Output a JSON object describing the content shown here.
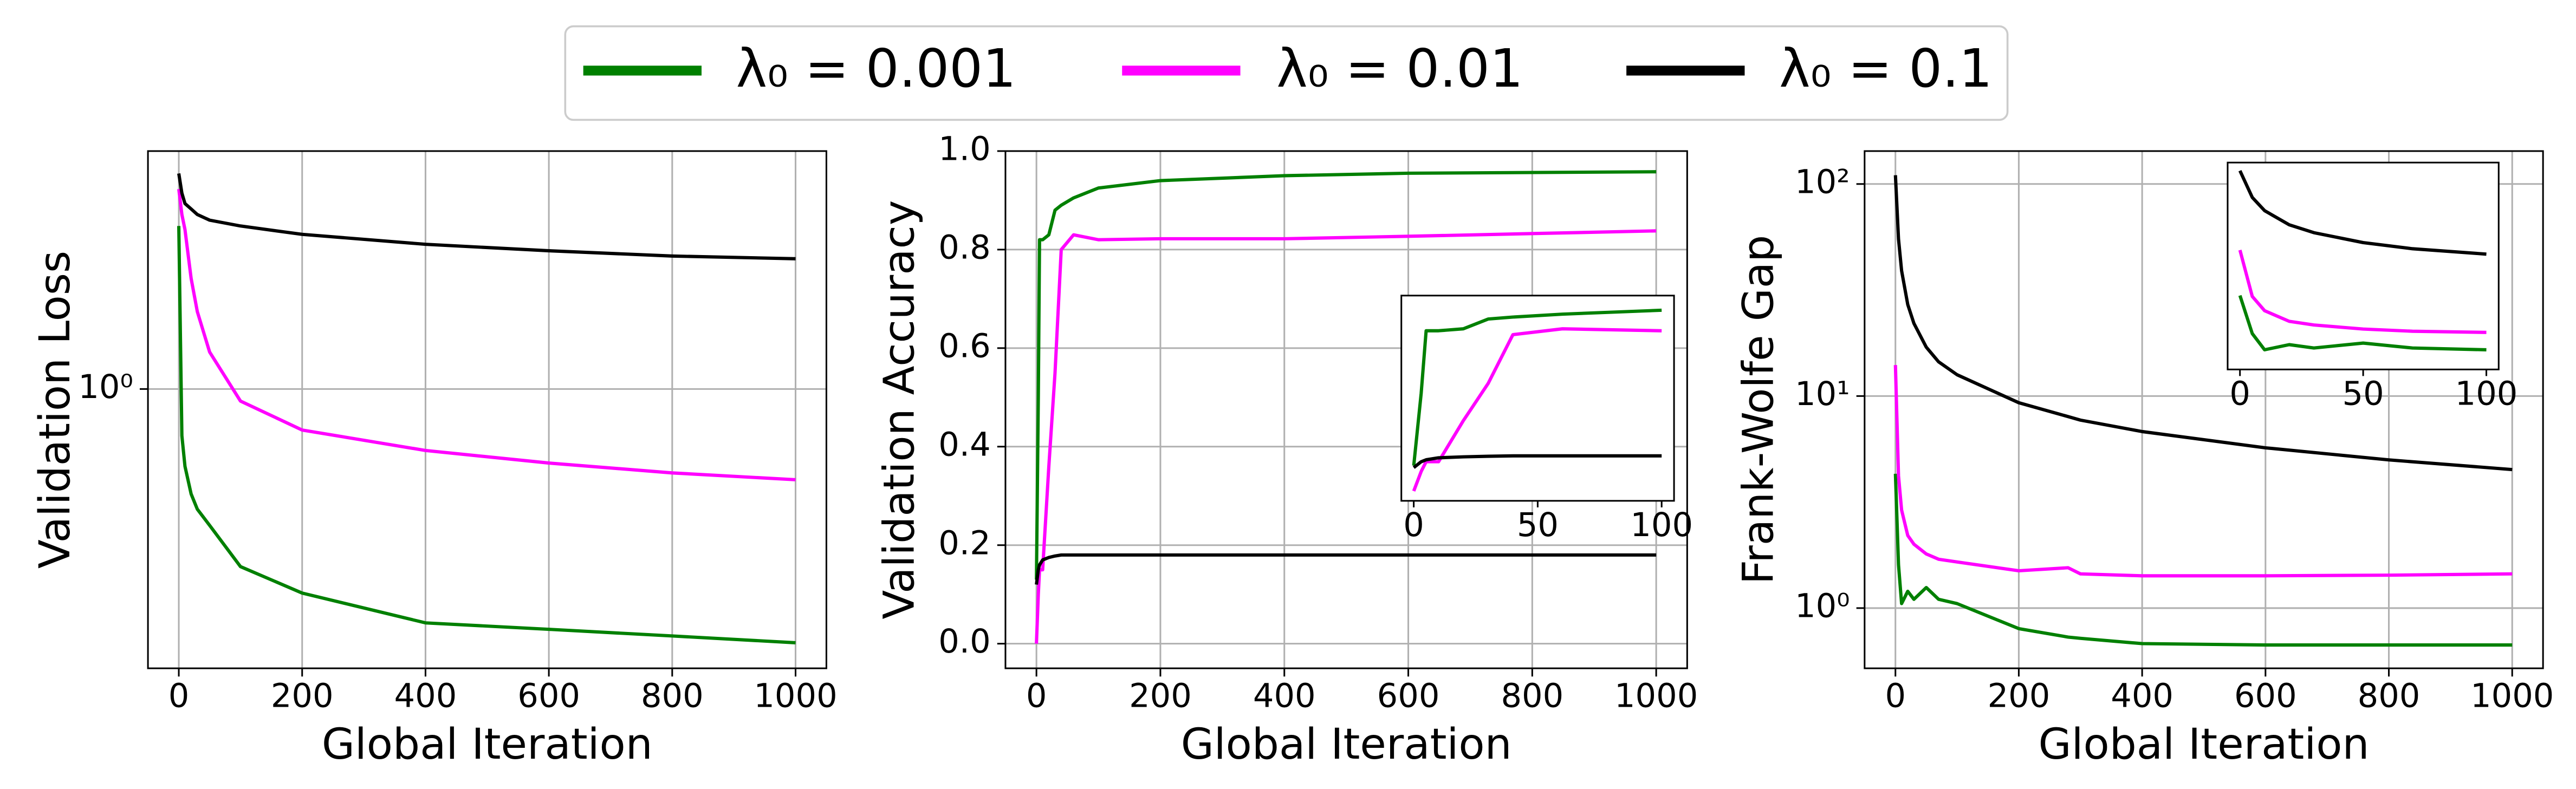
{
  "chart_data": [
    {
      "type": "line",
      "xlabel": "Global Iteration",
      "ylabel": "Validation Loss",
      "yscale": "log",
      "grid": true,
      "x": [
        0,
        5,
        10,
        20,
        30,
        50,
        100,
        200,
        400,
        600,
        800,
        1000
      ],
      "xlim": [
        -50,
        1050
      ],
      "xticks": [
        0,
        200,
        400,
        600,
        800,
        1000
      ],
      "ylim": [
        0.305,
        2.75
      ],
      "yticks": [
        {
          "value": 1,
          "label": "10⁰"
        }
      ],
      "series": [
        {
          "name": "λ₀ = 0.001",
          "color": "#008000",
          "values": [
            2.0,
            0.82,
            0.72,
            0.64,
            0.6,
            0.56,
            0.47,
            0.42,
            0.37,
            0.36,
            0.35,
            0.34
          ]
        },
        {
          "name": "λ₀ = 0.01",
          "color": "#ff00ff",
          "values": [
            2.34,
            2.1,
            1.97,
            1.6,
            1.39,
            1.17,
            0.95,
            0.84,
            0.77,
            0.73,
            0.7,
            0.68
          ]
        },
        {
          "name": "λ₀ = 0.1",
          "color": "#000000",
          "values": [
            2.5,
            2.3,
            2.2,
            2.15,
            2.1,
            2.05,
            2.0,
            1.93,
            1.85,
            1.8,
            1.76,
            1.74
          ]
        }
      ]
    },
    {
      "type": "line",
      "xlabel": "Global Iteration",
      "ylabel": "Validation Accuracy",
      "yscale": "linear",
      "grid": true,
      "x": [
        0,
        3,
        5,
        10,
        20,
        30,
        40,
        60,
        100,
        200,
        400,
        600,
        1000
      ],
      "xlim": [
        -50,
        1050
      ],
      "xticks": [
        0,
        200,
        400,
        600,
        800,
        1000
      ],
      "ylim": [
        -0.05,
        1.0
      ],
      "yticks": [
        {
          "value": 0,
          "label": "0.0"
        },
        0.2,
        0.4,
        0.6,
        0.8,
        {
          "value": 1,
          "label": "1.0"
        }
      ],
      "series": [
        {
          "color": "#008000",
          "values": [
            0.13,
            0.5,
            0.82,
            0.82,
            0.83,
            0.88,
            0.89,
            0.905,
            0.925,
            0.94,
            0.95,
            0.955,
            0.958
          ]
        },
        {
          "color": "#ff00ff",
          "values": [
            0.0,
            0.1,
            0.15,
            0.15,
            0.36,
            0.55,
            0.8,
            0.83,
            0.82,
            0.822,
            0.822,
            0.827,
            0.838
          ]
        },
        {
          "color": "#000000",
          "values": [
            0.12,
            0.15,
            0.16,
            0.17,
            0.175,
            0.178,
            0.18,
            0.18,
            0.18,
            0.18,
            0.18,
            0.18,
            0.18
          ]
        }
      ],
      "inset": {
        "xlim": [
          -5,
          105
        ],
        "xticks": [
          0,
          50,
          100
        ],
        "ylim": [
          -0.05,
          1.0
        ],
        "yscale": "linear"
      }
    },
    {
      "type": "line",
      "xlabel": "Global Iteration",
      "ylabel": "Frank-Wolfe Gap",
      "yscale": "log",
      "grid": true,
      "x": [
        0,
        5,
        10,
        20,
        30,
        50,
        70,
        100,
        200,
        280,
        300,
        400,
        600,
        800,
        1000
      ],
      "xlim": [
        -50,
        1050
      ],
      "xticks": [
        0,
        200,
        400,
        600,
        800,
        1000
      ],
      "ylim": [
        0.52,
        143
      ],
      "yticks": [
        {
          "value": 1,
          "label": "10⁰"
        },
        {
          "value": 10,
          "label": "10¹"
        },
        {
          "value": 100,
          "label": "10²"
        }
      ],
      "series": [
        {
          "color": "#008000",
          "values": [
            4.3,
            1.6,
            1.05,
            1.2,
            1.1,
            1.25,
            1.1,
            1.05,
            0.8,
            0.73,
            0.72,
            0.68,
            0.67,
            0.67,
            0.67
          ]
        },
        {
          "color": "#ff00ff",
          "values": [
            14,
            4.2,
            2.9,
            2.2,
            2.0,
            1.8,
            1.7,
            1.65,
            1.5,
            1.55,
            1.45,
            1.42,
            1.42,
            1.43,
            1.45
          ]
        },
        {
          "color": "#000000",
          "values": [
            110,
            55,
            39,
            27,
            22,
            17,
            14.5,
            12.6,
            9.3,
            8.0,
            7.7,
            6.8,
            5.7,
            5.0,
            4.5
          ]
        }
      ],
      "inset": {
        "xlim": [
          -5,
          105
        ],
        "xticks": [
          0,
          50,
          100
        ],
        "ylim": [
          0.63,
          136
        ],
        "yscale": "log"
      }
    }
  ]
}
